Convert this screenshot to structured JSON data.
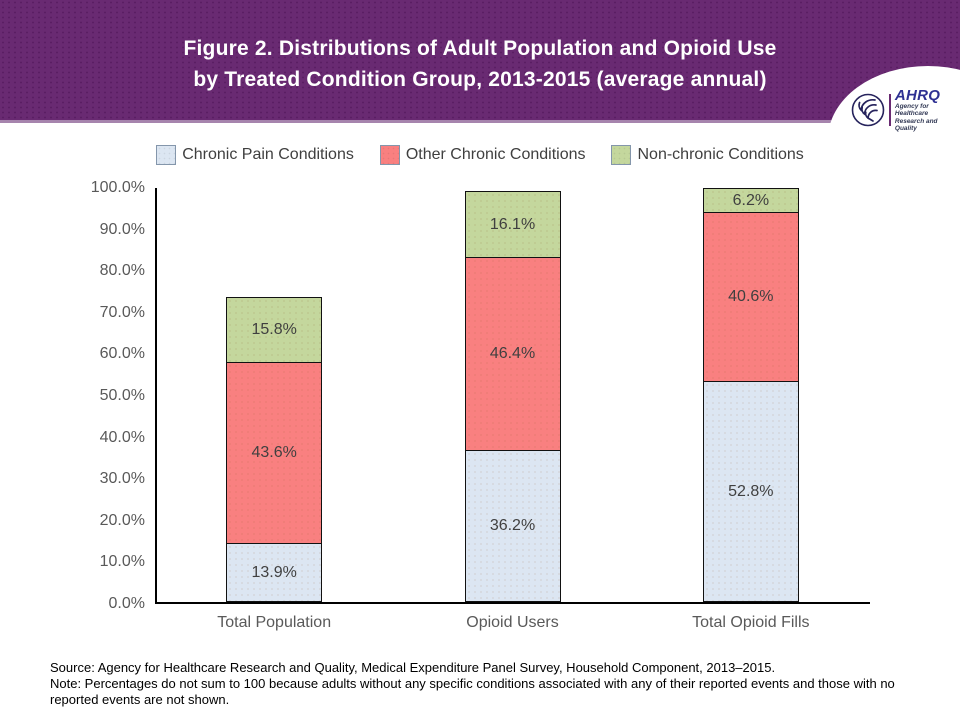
{
  "header": {
    "title_line1": "Figure 2. Distributions of Adult Population and Opioid Use",
    "title_line2": "by Treated Condition Group, 2013-2015 (average annual)",
    "background_color": "#692a72",
    "accent_line_color": "#a684ad"
  },
  "logo": {
    "acronym": "AHRQ",
    "tagline_line1": "Agency for Healthcare",
    "tagline_line2": "Research and Quality",
    "acronym_color": "#2e3092"
  },
  "chart_data": {
    "type": "bar",
    "stacked": true,
    "categories": [
      "Total Population",
      "Opioid Users",
      "Total Opioid Fills"
    ],
    "series": [
      {
        "name": "Chronic Pain Conditions",
        "values": [
          13.9,
          36.2,
          52.8
        ],
        "color": "#dce6f2"
      },
      {
        "name": "Other Chronic Conditions",
        "values": [
          43.6,
          46.4,
          40.6
        ],
        "color": "#f98080"
      },
      {
        "name": "Non-chronic Conditions",
        "values": [
          15.8,
          16.1,
          6.2
        ],
        "color": "#c4d79d"
      }
    ],
    "yticks": [
      "0.0%",
      "10.0%",
      "20.0%",
      "30.0%",
      "40.0%",
      "50.0%",
      "60.0%",
      "70.0%",
      "80.0%",
      "90.0%",
      "100.0%"
    ],
    "ylim": [
      0,
      100
    ],
    "value_label_suffix": "%",
    "grid": false,
    "legend_position": "top",
    "axis_color": "#000000",
    "tick_label_color": "#595959",
    "data_label_color": "#404040"
  },
  "footer": {
    "source": "Source: Agency for Healthcare Research and Quality, Medical Expenditure Panel Survey, Household Component, 2013–2015.",
    "note": "Note: Percentages do not sum to 100 because adults without any specific conditions associated with any of their reported events and those with no reported events are not shown."
  }
}
